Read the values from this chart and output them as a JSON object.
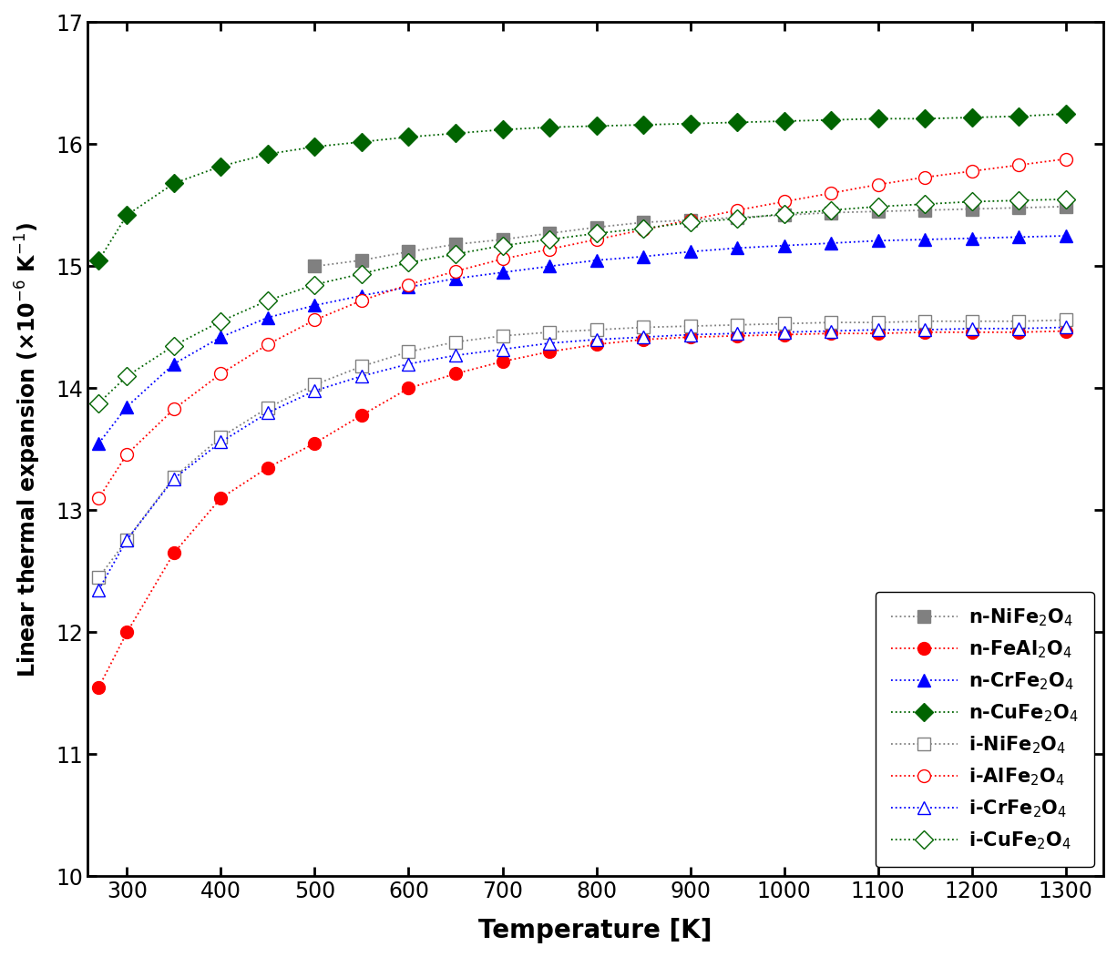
{
  "T_n_NiFe2O4": [
    500,
    550,
    600,
    650,
    700,
    750,
    800,
    850,
    900,
    950,
    1000,
    1050,
    1100,
    1150,
    1200,
    1250,
    1300
  ],
  "Y_n_NiFe2O4": [
    15.0,
    15.05,
    15.12,
    15.18,
    15.22,
    15.27,
    15.32,
    15.36,
    15.38,
    15.4,
    15.42,
    15.44,
    15.45,
    15.46,
    15.47,
    15.48,
    15.49
  ],
  "T_n_FeAl2O4": [
    270,
    300,
    350,
    400,
    450,
    500,
    550,
    600,
    650,
    700,
    750,
    800,
    850,
    900,
    950,
    1000,
    1050,
    1100,
    1150,
    1200,
    1250,
    1300
  ],
  "Y_n_FeAl2O4": [
    11.55,
    12.0,
    12.65,
    13.1,
    13.35,
    13.55,
    13.78,
    14.0,
    14.12,
    14.22,
    14.3,
    14.36,
    14.4,
    14.42,
    14.43,
    14.44,
    14.45,
    14.45,
    14.46,
    14.46,
    14.46,
    14.47
  ],
  "T_n_CrFe2O4": [
    270,
    300,
    350,
    400,
    450,
    500,
    550,
    600,
    650,
    700,
    750,
    800,
    850,
    900,
    950,
    1000,
    1050,
    1100,
    1150,
    1200,
    1250,
    1300
  ],
  "Y_n_CrFe2O4": [
    13.55,
    13.85,
    14.2,
    14.42,
    14.58,
    14.68,
    14.76,
    14.83,
    14.9,
    14.95,
    15.0,
    15.05,
    15.08,
    15.12,
    15.15,
    15.17,
    15.19,
    15.21,
    15.22,
    15.23,
    15.24,
    15.25
  ],
  "T_n_CuFe2O4": [
    270,
    300,
    350,
    400,
    450,
    500,
    550,
    600,
    650,
    700,
    750,
    800,
    850,
    900,
    950,
    1000,
    1050,
    1100,
    1150,
    1200,
    1250,
    1300
  ],
  "Y_n_CuFe2O4": [
    15.05,
    15.42,
    15.68,
    15.82,
    15.92,
    15.98,
    16.02,
    16.06,
    16.09,
    16.12,
    16.14,
    16.15,
    16.16,
    16.17,
    16.18,
    16.19,
    16.2,
    16.21,
    16.21,
    16.22,
    16.23,
    16.25
  ],
  "T_i_NiFe2O4": [
    270,
    300,
    350,
    400,
    450,
    500,
    550,
    600,
    650,
    700,
    750,
    800,
    850,
    900,
    950,
    1000,
    1050,
    1100,
    1150,
    1200,
    1250,
    1300
  ],
  "Y_i_NiFe2O4": [
    12.45,
    12.76,
    13.27,
    13.6,
    13.84,
    14.03,
    14.18,
    14.3,
    14.38,
    14.43,
    14.46,
    14.48,
    14.5,
    14.51,
    14.52,
    14.53,
    14.54,
    14.54,
    14.55,
    14.55,
    14.55,
    14.56
  ],
  "T_i_AlFe2O4": [
    270,
    300,
    350,
    400,
    450,
    500,
    550,
    600,
    650,
    700,
    750,
    800,
    850,
    900,
    950,
    1000,
    1050,
    1100,
    1150,
    1200,
    1250,
    1300
  ],
  "Y_i_AlFe2O4": [
    13.1,
    13.46,
    13.83,
    14.12,
    14.36,
    14.56,
    14.72,
    14.85,
    14.96,
    15.06,
    15.14,
    15.22,
    15.3,
    15.38,
    15.46,
    15.53,
    15.6,
    15.67,
    15.73,
    15.78,
    15.83,
    15.88
  ],
  "T_i_CrFe2O4": [
    270,
    300,
    350,
    400,
    450,
    500,
    550,
    600,
    650,
    700,
    750,
    800,
    850,
    900,
    950,
    1000,
    1050,
    1100,
    1150,
    1200,
    1250,
    1300
  ],
  "Y_i_CrFe2O4": [
    12.35,
    12.76,
    13.26,
    13.56,
    13.8,
    13.98,
    14.1,
    14.2,
    14.27,
    14.32,
    14.37,
    14.4,
    14.42,
    14.44,
    14.45,
    14.46,
    14.47,
    14.48,
    14.48,
    14.49,
    14.49,
    14.5
  ],
  "T_i_CuFe2O4": [
    270,
    300,
    350,
    400,
    450,
    500,
    550,
    600,
    650,
    700,
    750,
    800,
    850,
    900,
    950,
    1000,
    1050,
    1100,
    1150,
    1200,
    1250,
    1300
  ],
  "Y_i_CuFe2O4": [
    13.88,
    14.1,
    14.35,
    14.55,
    14.72,
    14.85,
    14.94,
    15.03,
    15.1,
    15.17,
    15.22,
    15.27,
    15.31,
    15.36,
    15.39,
    15.43,
    15.46,
    15.49,
    15.51,
    15.53,
    15.54,
    15.55
  ],
  "xlabel": "Temperature [K]",
  "ylabel": "Linear thermal expansion (×10$^{-6}$ K$^{-1}$)",
  "xlim": [
    258,
    1340
  ],
  "ylim": [
    10,
    17
  ],
  "xticks": [
    300,
    400,
    500,
    600,
    700,
    800,
    900,
    1000,
    1100,
    1200,
    1300
  ],
  "yticks": [
    10,
    11,
    12,
    13,
    14,
    15,
    16,
    17
  ],
  "legend_labels": [
    "n-NiFe$_2$O$_4$",
    "n-FeAl$_2$O$_4$",
    "n-CrFe$_2$O$_4$",
    "n-CuFe$_2$O$_4$",
    "i-NiFe$_2$O$_4$",
    "i-AlFe$_2$O$_4$",
    "i-CrFe$_2$O$_4$",
    "i-CuFe$_2$O$_4$"
  ],
  "colors": {
    "gray": "#808080",
    "red": "#ff0000",
    "blue": "#0000ff",
    "green": "#006400"
  },
  "lw": 1.3,
  "ms": 10
}
